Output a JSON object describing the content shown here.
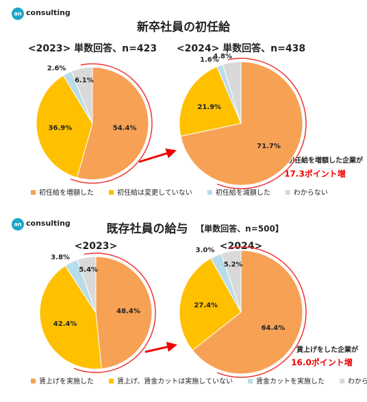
{
  "logo": {
    "mark": "an",
    "text": "consulting"
  },
  "chart_data": [
    {
      "type": "pie",
      "title": "新卒社員の初任給",
      "subtitle": "<2023> 単数回答、n=423",
      "categories": [
        "初任給を増額した",
        "初任給は変更していない",
        "初任給を減額した",
        "わからない"
      ],
      "values": [
        54.4,
        36.9,
        2.6,
        6.1
      ],
      "value_labels": [
        "54.4%",
        "36.9%",
        "2.6%",
        "6.1%"
      ],
      "colors": [
        "#F7A155",
        "#FFC000",
        "#B7DDE8",
        "#D9D9D9"
      ]
    },
    {
      "type": "pie",
      "subtitle": "<2024> 単数回答、n=438",
      "categories": [
        "初任給を増額した",
        "初任給は変更していない",
        "初任給を減額した",
        "わからない"
      ],
      "values": [
        71.7,
        21.9,
        1.6,
        4.8
      ],
      "value_labels": [
        "71.7%",
        "21.9%",
        "1.6%",
        "4.8%"
      ],
      "colors": [
        "#F7A155",
        "#FFC000",
        "#B7DDE8",
        "#D9D9D9"
      ],
      "annotation": "初任給を増額した企業が",
      "annotation_highlight": "17.3ポイント増"
    },
    {
      "type": "pie",
      "title": "既存社員の給与",
      "title_note": "【単数回答、n=500】",
      "subtitle": "<2023>",
      "categories": [
        "賃上げを実施した",
        "賃上げ、賃金カットは実施していない",
        "賃金カットを実施した",
        "わからない"
      ],
      "values": [
        48.4,
        42.4,
        3.8,
        5.4
      ],
      "value_labels": [
        "48.4%",
        "42.4%",
        "3.8%",
        "5.4%"
      ],
      "colors": [
        "#F7A155",
        "#FFC000",
        "#B7DDE8",
        "#D9D9D9"
      ]
    },
    {
      "type": "pie",
      "subtitle": "<2024>",
      "categories": [
        "賃上げを実施した",
        "賃上げ、賃金カットは実施していない",
        "賃金カットを実施した",
        "わからない"
      ],
      "values": [
        64.4,
        27.4,
        3.0,
        5.2
      ],
      "value_labels": [
        "64.4%",
        "27.4%",
        "3.0%",
        "5.2%"
      ],
      "colors": [
        "#F7A155",
        "#FFC000",
        "#B7DDE8",
        "#D9D9D9"
      ],
      "annotation": "賃上げをした企業が",
      "annotation_highlight": "16.0ポイント増"
    }
  ]
}
